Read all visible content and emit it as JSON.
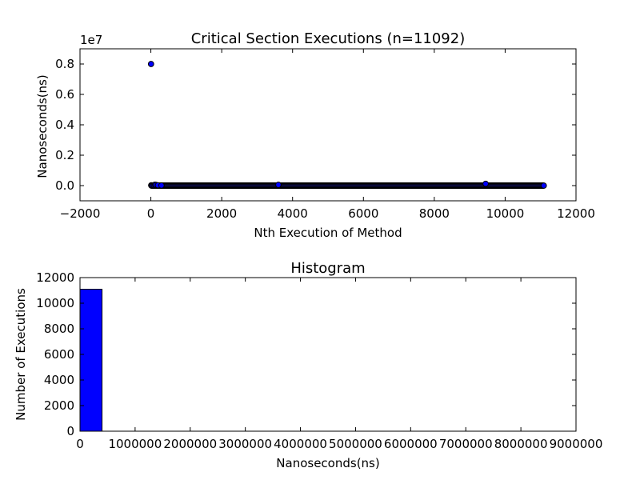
{
  "chart_data": [
    {
      "type": "scatter",
      "title": "Critical Section Executions (n=11092)",
      "xlabel": "Nth Execution of Method",
      "ylabel": "Nanoseconds(ns)",
      "offset_text": "1e7",
      "xlim": [
        -2000,
        12000
      ],
      "ylim": [
        -1000000,
        9000000
      ],
      "xticks": [
        -2000,
        0,
        2000,
        4000,
        6000,
        8000,
        10000,
        12000
      ],
      "xtick_labels": [
        "−2000",
        "0",
        "2000",
        "4000",
        "6000",
        "8000",
        "10000",
        "12000"
      ],
      "yticks": [
        0,
        2000000,
        4000000,
        6000000,
        8000000
      ],
      "ytick_labels": [
        "0.0",
        "0.2",
        "0.4",
        "0.6",
        "0.8"
      ],
      "grid": false,
      "marker_color": "#0000ff",
      "dense_band": {
        "x_start": 0,
        "x_end": 11092,
        "y": 0
      },
      "points": [
        {
          "x": 5,
          "y": 8000000
        },
        {
          "x": 10,
          "y": 20000
        },
        {
          "x": 30,
          "y": 10000
        },
        {
          "x": 60,
          "y": 15000
        },
        {
          "x": 90,
          "y": 30000
        },
        {
          "x": 120,
          "y": 60000
        },
        {
          "x": 150,
          "y": 40000
        },
        {
          "x": 200,
          "y": 20000
        },
        {
          "x": 300,
          "y": 10000
        },
        {
          "x": 3600,
          "y": 50000
        },
        {
          "x": 9450,
          "y": 120000
        },
        {
          "x": 11090,
          "y": 0
        }
      ]
    },
    {
      "type": "bar",
      "title": "Histogram",
      "xlabel": "Nanoseconds(ns)",
      "ylabel": "Number of Executions",
      "xlim": [
        0,
        9000000
      ],
      "ylim": [
        0,
        12000
      ],
      "xticks": [
        0,
        1000000,
        2000000,
        3000000,
        4000000,
        5000000,
        6000000,
        7000000,
        8000000,
        9000000
      ],
      "xtick_labels": [
        "0",
        "1000000",
        "2000000",
        "3000000",
        "4000000",
        "5000000",
        "6000000",
        "7000000",
        "8000000",
        "9000000"
      ],
      "yticks": [
        0,
        2000,
        4000,
        6000,
        8000,
        10000,
        12000
      ],
      "ytick_labels": [
        "0",
        "2000",
        "4000",
        "6000",
        "8000",
        "10000",
        "12000"
      ],
      "grid": false,
      "bar_color": "#0000ff",
      "bins": [
        {
          "start": 0,
          "end": 400000,
          "count": 11091
        },
        {
          "start": 400000,
          "end": 800000,
          "count": 0
        },
        {
          "start": 800000,
          "end": 1200000,
          "count": 0
        },
        {
          "start": 7600000,
          "end": 8000000,
          "count": 1
        }
      ]
    }
  ]
}
